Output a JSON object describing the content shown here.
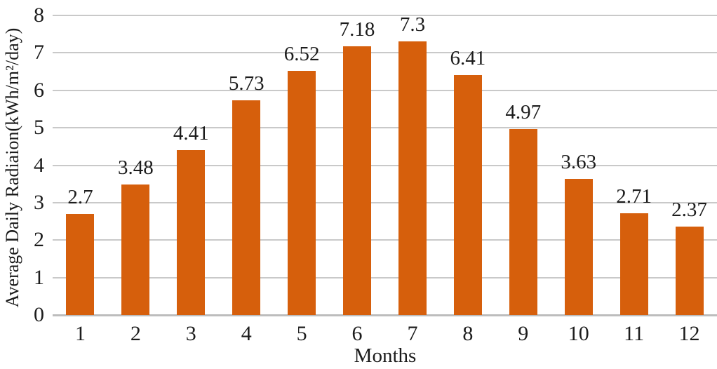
{
  "chart_data": {
    "type": "bar",
    "title": "",
    "xlabel": "Months",
    "ylabel": "Average Daily Radiaion(kWh/m²/day)",
    "categories": [
      "1",
      "2",
      "3",
      "4",
      "5",
      "6",
      "7",
      "8",
      "9",
      "10",
      "11",
      "12"
    ],
    "values": [
      2.7,
      3.48,
      4.41,
      5.73,
      6.52,
      7.18,
      7.3,
      6.41,
      4.97,
      3.63,
      2.71,
      2.37
    ],
    "value_labels": [
      "2.7",
      "3.48",
      "4.41",
      "5.73",
      "6.52",
      "7.18",
      "7.3",
      "6.41",
      "4.97",
      "3.63",
      "2.71",
      "2.37"
    ],
    "ylim": [
      0,
      8
    ],
    "yticks": [
      0,
      1,
      2,
      3,
      4,
      5,
      6,
      7,
      8
    ],
    "grid": true,
    "legend": false,
    "bar_color": "#D65F0C",
    "gridline_color": "#C9C9C9",
    "axis_line_color": "#BDBDBD",
    "text_color": "#1C1C1C"
  }
}
